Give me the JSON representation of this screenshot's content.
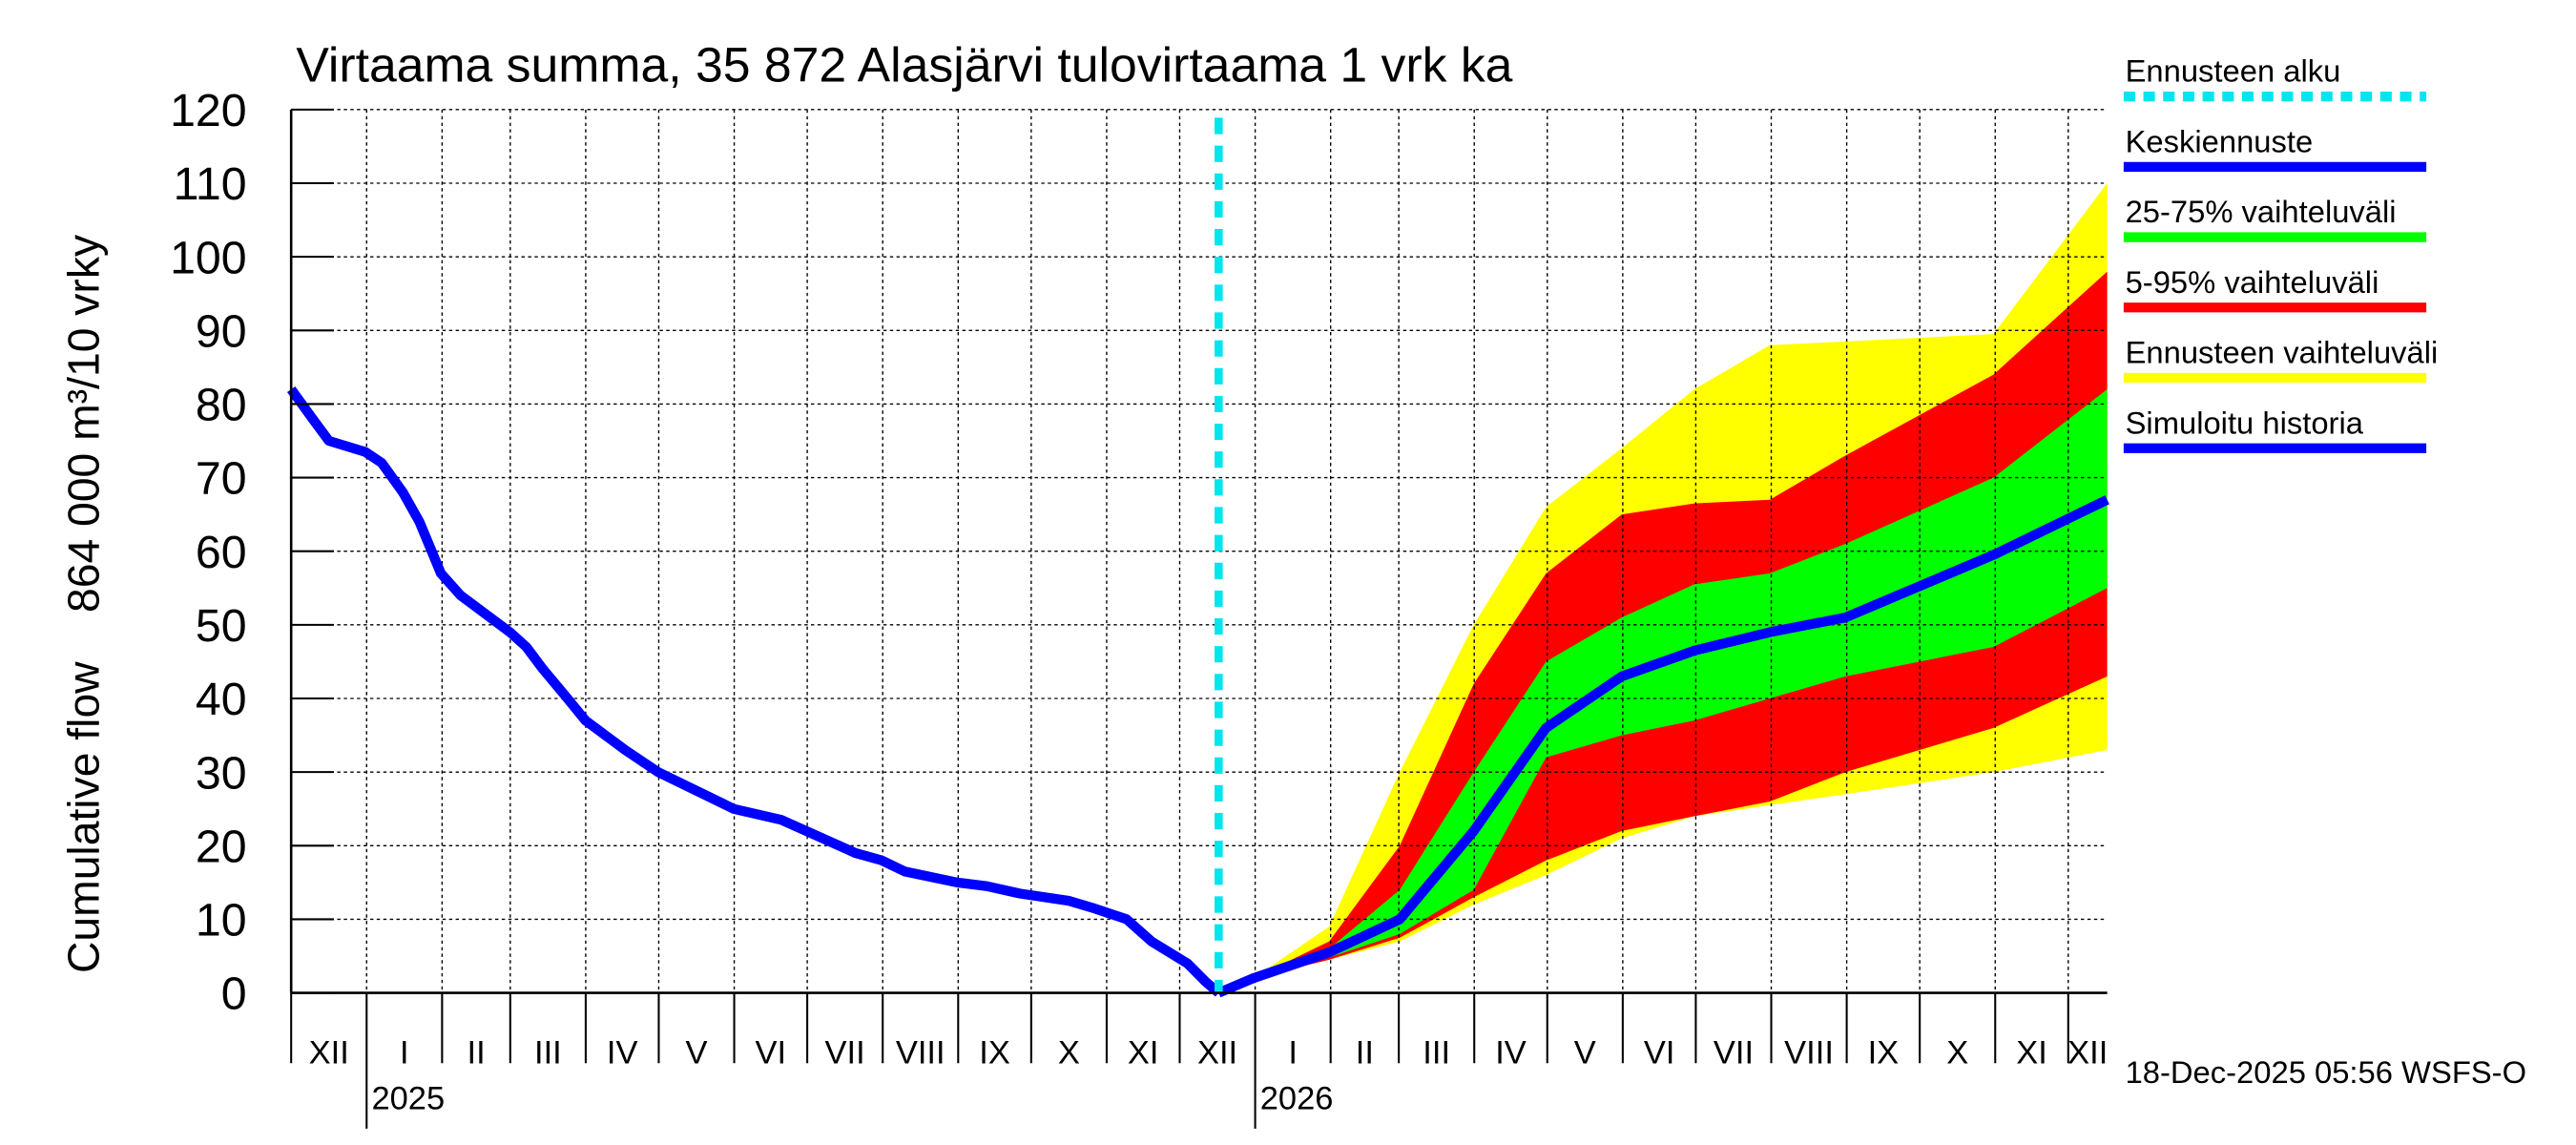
{
  "chart_data": {
    "type": "area",
    "title": "Virtaama summa, 35 872 Alasjärvi tulovirtaama 1 vrk ka",
    "ylabel": "Cumulative flow    864 000 m³/10 vrky",
    "xlabel": "",
    "ylim": [
      0,
      120
    ],
    "xlim_days_since_2024_12_01": [
      0,
      746
    ],
    "yticks": [
      "0",
      "10",
      "20",
      "30",
      "40",
      "50",
      "60",
      "70",
      "80",
      "90",
      "100",
      "110",
      "120"
    ],
    "month_labels": [
      "XII",
      "I",
      "II",
      "III",
      "IV",
      "V",
      "VI",
      "VII",
      "VIII",
      "IX",
      "X",
      "XI",
      "XII",
      "I",
      "II",
      "III",
      "IV",
      "V",
      "VI",
      "VII",
      "VIII",
      "IX",
      "X",
      "XI",
      "XII"
    ],
    "year_labels": [
      "2025",
      "2026"
    ],
    "forecast_start_day": 381,
    "grid": true,
    "legend_placement": "right",
    "legend": [
      {
        "label": "Ennusteen alku",
        "color": "#00e5ee",
        "style": "dashed"
      },
      {
        "label": "Keskiennuste",
        "color": "#0000ff",
        "style": "solid"
      },
      {
        "label": "25-75% vaihteluväli",
        "color": "#00ff00",
        "style": "solid"
      },
      {
        "label": "5-95% vaihteluväli",
        "color": "#ff0000",
        "style": "solid"
      },
      {
        "label": "Ennusteen vaihteluväli",
        "color": "#ffff00",
        "style": "solid"
      },
      {
        "label": "Simuloitu historia",
        "color": "#0000ff",
        "style": "solid"
      }
    ],
    "history": {
      "x": [
        0,
        8.8,
        15.5,
        30.4,
        37.2,
        45.9,
        52.7,
        61.5,
        69.6,
        89.9,
        96.6,
        103.4,
        113.5,
        120.9,
        137.2,
        150.7,
        181.8,
        201.4,
        211.5,
        231.8,
        242.6,
        252,
        273.6,
        285.8,
        299.3,
        319.6,
        329.7,
        343.2,
        353.4,
        368.2,
        375.7,
        381
      ],
      "y": [
        82,
        78,
        75,
        73.5,
        72,
        68,
        64,
        57,
        54,
        49,
        47,
        44,
        40,
        37,
        33,
        30,
        25,
        23.5,
        22,
        19,
        18,
        16.5,
        15,
        14.5,
        13.5,
        12.5,
        11.5,
        10,
        7,
        4,
        1.5,
        0
      ]
    },
    "forecast": {
      "x": [
        381,
        395.3,
        426.4,
        455.4,
        485.8,
        515.5,
        546.6,
        576.4,
        607.4,
        638.5,
        699.3,
        746
      ],
      "min": [
        0,
        2,
        4.5,
        7,
        12,
        16,
        21,
        24,
        25.5,
        27,
        30,
        33
      ],
      "p5": [
        0,
        2,
        4.5,
        7.5,
        13,
        18,
        22,
        24,
        26,
        30,
        36,
        43
      ],
      "p25": [
        0,
        2,
        4.8,
        8,
        14,
        32,
        35,
        37,
        40,
        43,
        47,
        55
      ],
      "median": [
        0,
        2,
        5.5,
        10,
        22,
        36,
        43,
        46.5,
        49,
        51,
        59.5,
        67
      ],
      "p75": [
        0,
        2,
        6,
        14,
        30,
        45,
        51,
        55.5,
        57,
        61,
        70,
        82
      ],
      "p95": [
        0,
        2,
        7,
        20,
        42,
        57,
        65,
        66.5,
        67,
        73,
        84,
        98
      ],
      "max": [
        0,
        2,
        9,
        30,
        50,
        66,
        74,
        82,
        88,
        88.5,
        89.5,
        110
      ]
    },
    "footer": "18-Dec-2025 05:56 WSFS-O"
  }
}
